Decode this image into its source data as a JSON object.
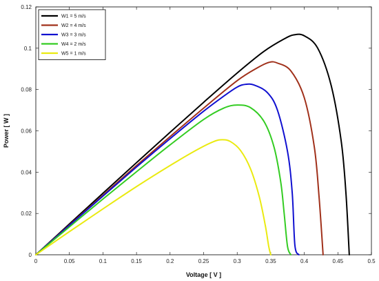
{
  "chart_data": {
    "type": "line",
    "title": "",
    "xlabel": "Voltage [ V ]",
    "ylabel": "Power [ W ]",
    "xlim": [
      0,
      0.5
    ],
    "ylim": [
      0,
      0.12
    ],
    "x_ticks": [
      "0",
      "0.05",
      "0.1",
      "0.15",
      "0.2",
      "0.25",
      "0.3",
      "0.35",
      "0.4",
      "0.45",
      "0.5"
    ],
    "y_ticks": [
      "0",
      "0.02",
      "0.04",
      "0.06",
      "0.08",
      "0.1",
      "0.12"
    ],
    "grid": false,
    "legend_position": "top-left",
    "series": [
      {
        "name": "W1 = 5 m/s",
        "color": "#000000",
        "x": [
          0,
          0.05,
          0.1,
          0.15,
          0.2,
          0.25,
          0.3,
          0.34,
          0.37,
          0.385,
          0.4,
          0.42,
          0.44,
          0.455,
          0.462,
          0.467
        ],
        "y": [
          0,
          0.0149,
          0.0298,
          0.0446,
          0.0593,
          0.0738,
          0.088,
          0.0985,
          0.1045,
          0.1065,
          0.106,
          0.1,
          0.082,
          0.055,
          0.03,
          0.0
        ]
      },
      {
        "name": "W2 = 4 m/s",
        "color": "#a0301a",
        "x": [
          0,
          0.05,
          0.1,
          0.15,
          0.2,
          0.25,
          0.3,
          0.33,
          0.348,
          0.36,
          0.38,
          0.4,
          0.415,
          0.422,
          0.428
        ],
        "y": [
          0,
          0.0144,
          0.0288,
          0.0432,
          0.0572,
          0.071,
          0.0843,
          0.0905,
          0.0932,
          0.0928,
          0.089,
          0.076,
          0.052,
          0.028,
          0.0
        ]
      },
      {
        "name": "W3 = 3 m/s",
        "color": "#1010d0",
        "x": [
          0,
          0.05,
          0.1,
          0.15,
          0.2,
          0.25,
          0.28,
          0.3,
          0.312,
          0.325,
          0.345,
          0.36,
          0.375,
          0.382,
          0.386,
          0.392
        ],
        "y": [
          0,
          0.0142,
          0.0284,
          0.0425,
          0.0562,
          0.0695,
          0.0768,
          0.0812,
          0.0825,
          0.0822,
          0.0785,
          0.07,
          0.05,
          0.03,
          0.0045,
          0.0
        ]
      },
      {
        "name": "W4 = 2 m/s",
        "color": "#33cc22",
        "x": [
          0,
          0.05,
          0.1,
          0.15,
          0.2,
          0.25,
          0.28,
          0.3,
          0.32,
          0.34,
          0.355,
          0.365,
          0.37,
          0.375,
          0.38
        ],
        "y": [
          0,
          0.0135,
          0.027,
          0.0402,
          0.0532,
          0.0655,
          0.071,
          0.0725,
          0.0712,
          0.0645,
          0.052,
          0.035,
          0.02,
          0.004,
          0.0
        ]
      },
      {
        "name": "W5 = 1 m/s",
        "color": "#eaea10",
        "x": [
          0,
          0.05,
          0.1,
          0.15,
          0.2,
          0.24,
          0.265,
          0.278,
          0.29,
          0.305,
          0.32,
          0.333,
          0.342,
          0.347,
          0.35
        ],
        "y": [
          0,
          0.0112,
          0.0222,
          0.033,
          0.0432,
          0.0508,
          0.0548,
          0.0557,
          0.0548,
          0.0505,
          0.0415,
          0.028,
          0.014,
          0.004,
          0.0
        ]
      }
    ]
  }
}
